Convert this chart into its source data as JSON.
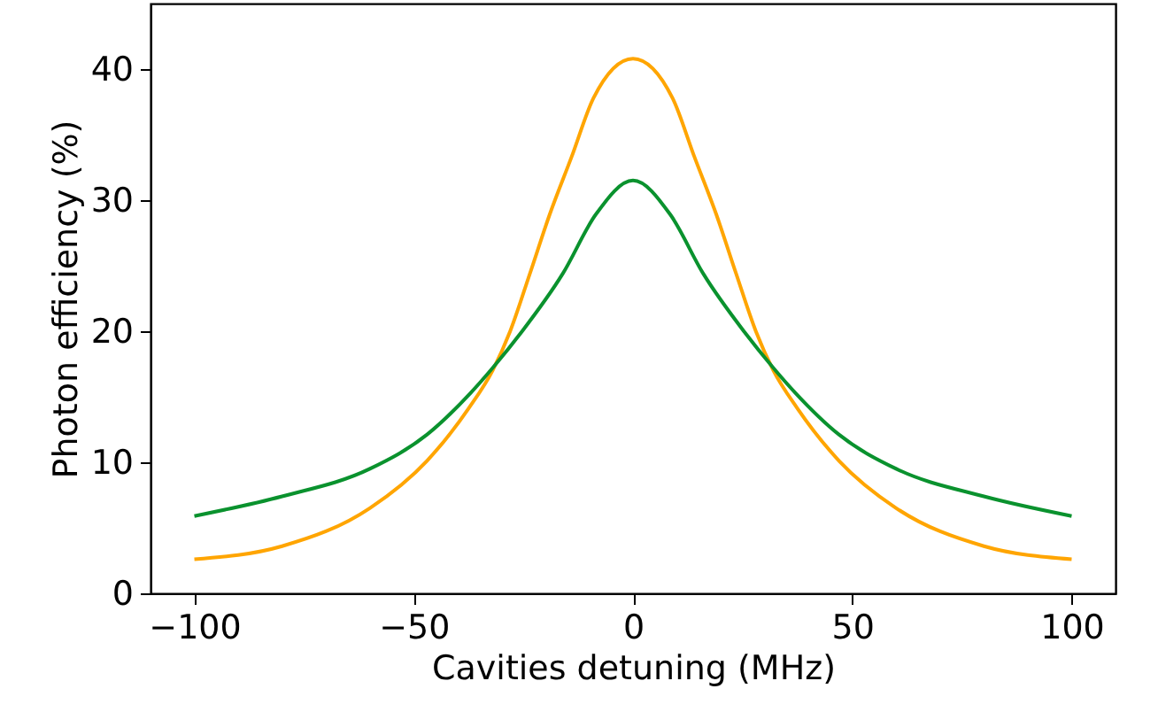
{
  "chart_data": {
    "type": "line",
    "xlabel": "Cavities detuning (MHz)",
    "ylabel": "Photon efficiency (%)",
    "xlim": [
      -110,
      110
    ],
    "ylim": [
      0,
      45
    ],
    "xticks": [
      {
        "value": -100,
        "label": "−100"
      },
      {
        "value": -50,
        "label": "−50"
      },
      0,
      50,
      100
    ],
    "yticks": [
      0,
      10,
      20,
      30,
      40
    ],
    "grid": false,
    "marker": "none",
    "line_style": "solid",
    "series": [
      {
        "color": "#ffa500",
        "x": [
          -100,
          -80,
          -60,
          -47,
          -37.5,
          -32,
          -28,
          -23.5,
          -19,
          -14,
          -9,
          0,
          9,
          14,
          19,
          23.5,
          28,
          32,
          37.5,
          47,
          60,
          80,
          100
        ],
        "values": [
          2.6,
          3.6,
          6.5,
          10.1,
          14.1,
          17.0,
          20.0,
          24.4,
          28.9,
          33.3,
          37.8,
          40.8,
          37.8,
          33.3,
          28.9,
          24.4,
          20.0,
          17.0,
          14.1,
          10.1,
          6.5,
          3.6,
          2.6
        ]
      },
      {
        "color": "#0a922e",
        "x": [
          -100,
          -80,
          -60,
          -47,
          -37,
          -32,
          -25.5,
          -16,
          -8.5,
          0,
          8.5,
          16,
          25.5,
          32,
          37,
          47,
          60,
          80,
          100
        ],
        "values": [
          5.9,
          7.4,
          9.5,
          12.1,
          15.3,
          17.2,
          19.9,
          24.4,
          28.9,
          31.5,
          28.9,
          24.4,
          19.9,
          17.2,
          15.3,
          12.1,
          9.5,
          7.4,
          5.9
        ]
      }
    ]
  }
}
